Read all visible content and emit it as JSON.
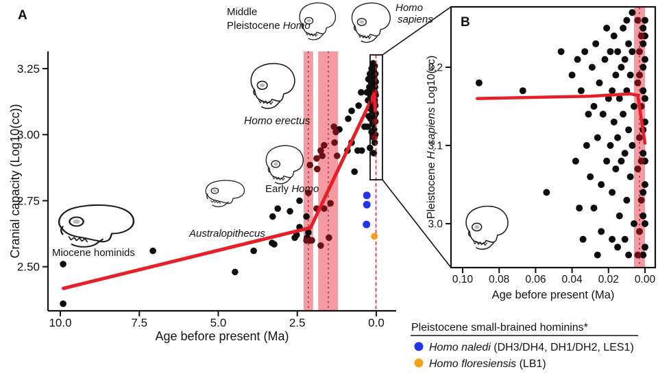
{
  "legend": {
    "title": "Pleistocene small-brained hominins*",
    "items": [
      {
        "id": "homo-naledi",
        "species": "Homo naledi",
        "detail": " (DH3/DH4, DH1/DH2, LES1)",
        "color": "#2434e8"
      },
      {
        "id": "homo-floresiensis",
        "species": "Homo floresiensis",
        "detail": " (LB1)",
        "color": "#f5a01e"
      }
    ]
  },
  "chart_data": [
    {
      "type": "scatter",
      "panel": "A",
      "xlabel": "Age before present (Ma)",
      "ylabel": "Cranial capacity (Log10(cc))",
      "x_ticks": [
        10.0,
        7.5,
        5.0,
        2.5,
        0.0
      ],
      "x_tick_labels": [
        "10.0",
        "7.5",
        "5.0",
        "2.5",
        "0.0"
      ],
      "y_ticks": [
        3.25,
        3.0,
        2.75,
        2.5
      ],
      "y_tick_labels": [
        "3.25",
        "3.00",
        "2.75",
        "2.50"
      ],
      "xlim": [
        10.6,
        -0.65
      ],
      "ylim": [
        2.33,
        3.32
      ],
      "x_reversed": true,
      "grid": false,
      "band_color": "#f49aa2",
      "band_center_line_color": "#c03a47",
      "shaded_intervals": [
        {
          "from": 2.3,
          "to": 2.0,
          "center": 2.15
        },
        {
          "from": 1.84,
          "to": 1.21,
          "center": 1.52
        }
      ],
      "dashed_vline": 0.01,
      "trend_line": {
        "color": "#e81f27",
        "points": [
          [
            9.9,
            2.418
          ],
          [
            2.08,
            2.648
          ],
          [
            0.07,
            3.155
          ],
          [
            0.03,
            3.09
          ]
        ]
      },
      "series": [
        {
          "id": "hominins",
          "color": "#0d0d0d",
          "marker_r": 4.8,
          "points": [
            [
              9.91,
              2.51
            ],
            [
              9.91,
              2.36
            ],
            [
              7.07,
              2.56
            ],
            [
              4.47,
              2.48
            ],
            [
              3.88,
              2.56
            ],
            [
              3.3,
              2.59
            ],
            [
              3.23,
              2.585
            ],
            [
              3.28,
              2.69
            ],
            [
              3.12,
              2.72
            ],
            [
              2.73,
              2.71
            ],
            [
              2.43,
              2.75
            ],
            [
              2.43,
              2.65
            ],
            [
              2.58,
              2.61
            ],
            [
              2.52,
              2.62
            ],
            [
              2.21,
              2.69
            ],
            [
              2.15,
              2.63
            ],
            [
              2.19,
              2.61
            ],
            [
              2.1,
              2.6
            ],
            [
              1.17,
              3.02
            ],
            [
              0.89,
              3.06
            ],
            [
              0.78,
              3.09
            ],
            [
              0.78,
              2.97
            ],
            [
              0.91,
              2.94
            ],
            [
              0.69,
              2.86
            ],
            [
              0.59,
              2.94
            ],
            [
              0.56,
              3.11
            ],
            [
              0.48,
              3.16
            ],
            [
              0.46,
              2.94
            ],
            [
              0.37,
              3.03
            ],
            [
              0.1,
              3.27
            ],
            [
              0.05,
              3.26
            ],
            [
              0.15,
              3.25
            ],
            [
              0.08,
              3.245
            ],
            [
              0.2,
              3.23
            ],
            [
              0.03,
              3.23
            ],
            [
              0.12,
              3.22
            ],
            [
              0.25,
              3.21
            ],
            [
              0.06,
              3.21
            ],
            [
              0.17,
              3.2
            ],
            [
              0.02,
              3.2
            ],
            [
              0.1,
              3.19
            ],
            [
              0.22,
              3.18
            ],
            [
              0.04,
              3.18
            ],
            [
              0.14,
              3.17
            ],
            [
              0.3,
              3.16
            ],
            [
              0.07,
              3.16
            ],
            [
              0.19,
              3.15
            ],
            [
              0.02,
              3.15
            ],
            [
              0.11,
              3.14
            ],
            [
              0.26,
              3.13
            ],
            [
              0.05,
              3.13
            ],
            [
              0.16,
              3.12
            ],
            [
              0.03,
              3.11
            ],
            [
              0.21,
              3.1
            ],
            [
              0.08,
              3.1
            ],
            [
              0.13,
              3.09
            ],
            [
              0.02,
              3.08
            ],
            [
              0.24,
              3.07
            ],
            [
              0.06,
              3.07
            ],
            [
              0.18,
              3.06
            ],
            [
              0.04,
              3.05
            ],
            [
              0.12,
              3.04
            ],
            [
              0.28,
              3.03
            ],
            [
              0.07,
              3.02
            ],
            [
              0.15,
              3.01
            ],
            [
              0.03,
              3.0
            ],
            [
              0.1,
              2.99
            ],
            [
              0.05,
              2.97
            ],
            [
              0.2,
              2.95
            ],
            [
              0.08,
              2.93
            ]
          ]
        },
        {
          "id": "band_highlighted",
          "color": "#6b1016",
          "marker_r": 4.8,
          "points": [
            [
              2.21,
              2.6
            ],
            [
              2.15,
              2.78
            ],
            [
              2.04,
              2.6
            ],
            [
              2.1,
              2.885
            ],
            [
              1.89,
              2.91
            ],
            [
              1.89,
              2.72
            ],
            [
              1.87,
              2.87
            ],
            [
              1.76,
              2.94
            ],
            [
              1.76,
              2.58
            ],
            [
              1.71,
              2.92
            ],
            [
              1.65,
              2.96
            ],
            [
              1.65,
              2.72
            ],
            [
              1.5,
              2.61
            ],
            [
              1.45,
              2.74
            ],
            [
              1.34,
              3.03
            ],
            [
              1.32,
              2.97
            ],
            [
              1.28,
              3.01
            ],
            [
              1.24,
              2.92
            ],
            [
              0.05,
              3.12
            ],
            [
              0.03,
              3.05
            ],
            [
              0.06,
              2.99
            ],
            [
              0.04,
              3.16
            ]
          ]
        },
        {
          "id": "homo_naledi",
          "color": "#2434e8",
          "marker_r": 5.5,
          "points": [
            [
              0.3,
              2.77
            ],
            [
              0.3,
              2.735
            ],
            [
              0.31,
              2.66
            ]
          ]
        },
        {
          "id": "homo_floresiensis",
          "color": "#f5a01e",
          "marker_r": 5.0,
          "points": [
            [
              0.06,
              2.615
            ]
          ]
        }
      ],
      "annotations": {
        "miocene": {
          "text": "Miocene hominids"
        },
        "australopithecus": {
          "text": "Australopithecus"
        },
        "early_homo": {
          "prefix": "Early ",
          "italic": "Homo"
        },
        "homo_erectus": {
          "text": "Homo erectus"
        },
        "middle_pleistocene": {
          "line1": "Middle",
          "line2_prefix": "Pleistocene ",
          "line2_italic": "Homo"
        },
        "homo_sapiens": {
          "line1": "Homo",
          "line2": "sapiens"
        }
      }
    },
    {
      "type": "scatter",
      "panel": "B",
      "xlabel": "Age before present (Ma)",
      "ylabel_prefix": "Pleistocene ",
      "ylabel_italic": "H. sapiens",
      "ylabel_suffix": " Log10(cc)",
      "x_ticks": [
        0.1,
        0.08,
        0.06,
        0.04,
        0.02,
        0.0
      ],
      "x_tick_labels": [
        "0.10",
        "0.08",
        "0.06",
        "0.04",
        "0.02",
        "0.00"
      ],
      "y_ticks": [
        3.2,
        3.1,
        3.0
      ],
      "y_tick_labels": [
        "3.2",
        "3.1",
        "3.0"
      ],
      "xlim": [
        0.102,
        -0.006
      ],
      "ylim": [
        2.94,
        3.28
      ],
      "x_reversed": true,
      "grid": false,
      "band_color": "#f49aa2",
      "band_center_line_color": "#c03a47",
      "shaded_intervals": [
        {
          "from": 0.006,
          "to": 0.0,
          "center": 0.003
        }
      ],
      "trend_line": {
        "color": "#e81f27",
        "points": [
          [
            0.092,
            3.16
          ],
          [
            0.03,
            3.163
          ],
          [
            0.008,
            3.166
          ],
          [
            0.004,
            3.164
          ],
          [
            0.0,
            3.103
          ]
        ]
      },
      "series": [
        {
          "id": "h_sapiens",
          "color": "#0d0d0d",
          "marker_r": 5.0,
          "points": [
            [
              0.091,
              3.18
            ],
            [
              0.067,
              3.17
            ],
            [
              0.054,
              3.04
            ],
            [
              0.046,
              3.22
            ],
            [
              0.04,
              3.19
            ],
            [
              0.037,
              3.21
            ],
            [
              0.035,
              3.17
            ],
            [
              0.033,
              3.22
            ],
            [
              0.032,
              3.1
            ],
            [
              0.031,
              3.14
            ],
            [
              0.03,
              3.06
            ],
            [
              0.036,
              3.02
            ],
            [
              0.034,
              2.98
            ],
            [
              0.038,
              3.08
            ],
            [
              0.029,
              3.2
            ],
            [
              0.028,
              3.15
            ],
            [
              0.027,
              3.23
            ],
            [
              0.026,
              3.11
            ],
            [
              0.025,
              3.18
            ],
            [
              0.024,
              3.05
            ],
            [
              0.023,
              3.14
            ],
            [
              0.022,
              3.21
            ],
            [
              0.021,
              3.08
            ],
            [
              0.02,
              3.16
            ],
            [
              0.028,
              3.02
            ],
            [
              0.024,
              2.99
            ],
            [
              0.021,
              3.25
            ],
            [
              0.026,
              2.96
            ],
            [
              0.019,
              3.22
            ],
            [
              0.019,
              3.1
            ],
            [
              0.018,
              3.17
            ],
            [
              0.018,
              3.04
            ],
            [
              0.017,
              3.24
            ],
            [
              0.017,
              3.13
            ],
            [
              0.016,
              3.19
            ],
            [
              0.016,
              3.07
            ],
            [
              0.015,
              3.22
            ],
            [
              0.015,
              3.11
            ],
            [
              0.014,
              3.16
            ],
            [
              0.014,
              3.01
            ],
            [
              0.013,
              3.2
            ],
            [
              0.013,
              3.08
            ],
            [
              0.012,
              3.25
            ],
            [
              0.012,
              3.14
            ],
            [
              0.018,
              2.98
            ],
            [
              0.015,
              2.97
            ],
            [
              0.011,
              3.21
            ],
            [
              0.011,
              3.09
            ],
            [
              0.01,
              3.17
            ],
            [
              0.01,
              3.03
            ],
            [
              0.009,
              3.23
            ],
            [
              0.009,
              3.12
            ],
            [
              0.008,
              3.19
            ],
            [
              0.008,
              3.06
            ],
            [
              0.007,
              3.22
            ],
            [
              0.007,
              3.1
            ],
            [
              0.006,
              3.15
            ],
            [
              0.006,
              3.0
            ],
            [
              0.011,
              2.98
            ],
            [
              0.009,
              2.96
            ],
            [
              0.01,
              3.26
            ],
            [
              0.007,
              3.27
            ],
            [
              0.001,
              3.25
            ],
            [
              0.0,
              3.21
            ],
            [
              0.001,
              3.17
            ],
            [
              0.0,
              3.13
            ],
            [
              0.001,
              3.09
            ],
            [
              0.0,
              3.05
            ],
            [
              0.001,
              3.01
            ],
            [
              0.0,
              2.97
            ],
            [
              0.0,
              3.24
            ],
            [
              0.001,
              3.2
            ],
            [
              0.0,
              3.16
            ],
            [
              0.001,
              3.12
            ],
            [
              0.0,
              3.08
            ],
            [
              0.001,
              3.04
            ],
            [
              0.0,
              3.0
            ],
            [
              0.001,
              2.96
            ],
            [
              0.0,
              3.26
            ],
            [
              0.001,
              3.23
            ]
          ]
        },
        {
          "id": "band_highlighted",
          "color": "#6b1016",
          "marker_r": 5.0,
          "points": [
            [
              0.004,
              3.26
            ],
            [
              0.003,
              3.22
            ],
            [
              0.004,
              3.18
            ],
            [
              0.002,
              3.15
            ],
            [
              0.003,
              3.11
            ],
            [
              0.004,
              3.07
            ],
            [
              0.002,
              3.03
            ],
            [
              0.003,
              2.99
            ],
            [
              0.004,
              2.96
            ],
            [
              0.002,
              3.24
            ],
            [
              0.003,
              3.19
            ],
            [
              0.002,
              3.08
            ]
          ]
        }
      ]
    }
  ]
}
